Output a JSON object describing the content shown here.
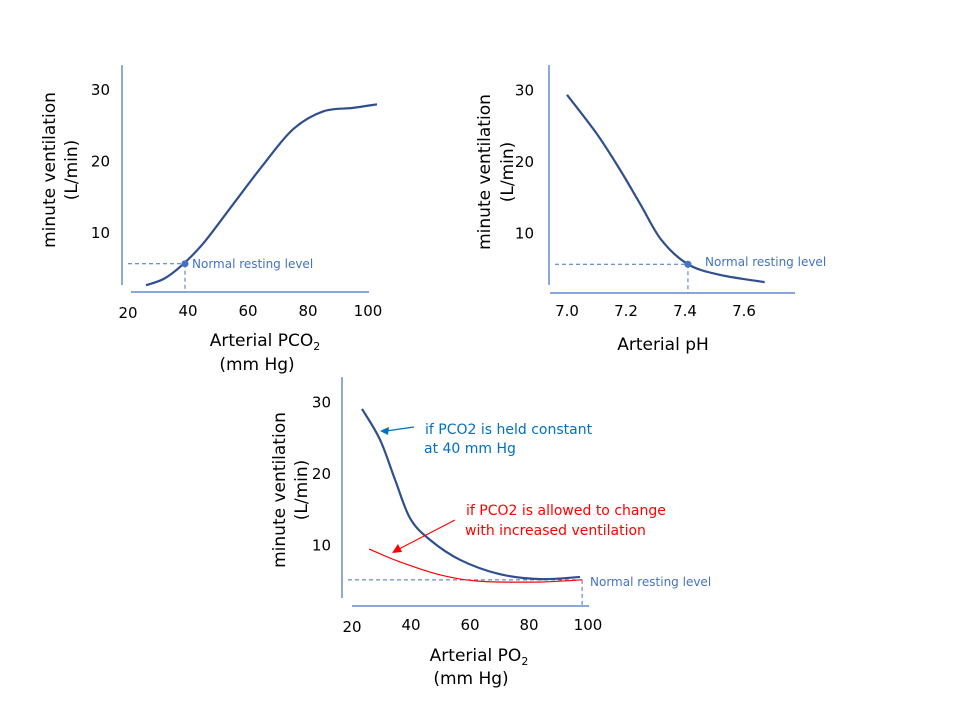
{
  "chart_data": [
    {
      "type": "line",
      "xlabel": "Arterial PCO2",
      "xlabel_main": "Arterial PCO",
      "xlabel_sub": "2",
      "xlabel_unit": "(mm Hg)",
      "ylabel": "minute ventilation",
      "ylabel_unit": "(L/min)",
      "xticks": [
        20,
        40,
        60,
        80,
        100
      ],
      "yticks": [
        10,
        20,
        30
      ],
      "xlim": [
        20,
        100
      ],
      "ylim": [
        0,
        30
      ],
      "series": [
        {
          "color": "#2f4f8f",
          "points": [
            [
              26,
              2.7
            ],
            [
              32,
              3.6
            ],
            [
              38,
              5.5
            ],
            [
              45,
              8.5
            ],
            [
              55,
              14
            ],
            [
              65,
              19.5
            ],
            [
              75,
              24.5
            ],
            [
              85,
              27
            ],
            [
              95,
              27.5
            ],
            [
              103,
              28
            ]
          ]
        }
      ],
      "normal_point": [
        39,
        5.7
      ],
      "annotation": "Normal resting level"
    },
    {
      "type": "line",
      "xlabel": "Arterial pH",
      "ylabel": "minute ventilation",
      "ylabel_unit": "(L/min)",
      "xticks": [
        7.0,
        7.2,
        7.4,
        7.6
      ],
      "xtick_labels": [
        "7.0",
        "7.2",
        "7.4",
        "7.6"
      ],
      "yticks": [
        10,
        20,
        30
      ],
      "xlim": [
        7.0,
        7.6
      ],
      "ylim": [
        0,
        30
      ],
      "series": [
        {
          "color": "#2f4f8f",
          "points": [
            [
              7.0,
              29.4
            ],
            [
              7.1,
              24
            ],
            [
              7.18,
              18.9
            ],
            [
              7.25,
              14
            ],
            [
              7.32,
              9.1
            ],
            [
              7.41,
              5.7
            ],
            [
              7.52,
              4.2
            ],
            [
              7.67,
              3.2
            ]
          ]
        }
      ],
      "normal_point": [
        7.41,
        5.7
      ],
      "annotation": "Normal resting level"
    },
    {
      "type": "line",
      "xlabel": "Arterial PO2",
      "xlabel_main": "Arterial PO",
      "xlabel_sub": "2",
      "xlabel_unit": "(mm Hg)",
      "ylabel": "minute ventilation",
      "ylabel_unit": "(L/min)",
      "xticks": [
        20,
        40,
        60,
        80,
        100
      ],
      "yticks": [
        10,
        20,
        30
      ],
      "xlim": [
        20,
        100
      ],
      "ylim": [
        0,
        30
      ],
      "series": [
        {
          "name": "if PCO2 is held constant at 40 mm Hg",
          "color": "#2f4f8f",
          "label_color": "#0070c0",
          "label_lines": [
            "if PCO2 is held constant",
            "at 40 mm  Hg"
          ],
          "points": [
            [
              23.4,
              29.1
            ],
            [
              29.5,
              24.8
            ],
            [
              34.6,
              19.2
            ],
            [
              39.7,
              13.8
            ],
            [
              46.4,
              10.8
            ],
            [
              56.6,
              8
            ],
            [
              70,
              6
            ],
            [
              83.7,
              5.3
            ],
            [
              97.3,
              5.6
            ]
          ]
        },
        {
          "name": "if PCO2 is allowed to change with increased ventilation",
          "color": "#ff0000",
          "label_color": "#ff0000",
          "label_lines": [
            "if PCO2 is allowed to change",
            "with increased ventilation"
          ],
          "points": [
            [
              25.8,
              9.5
            ],
            [
              36.3,
              7.7
            ],
            [
              49.8,
              5.9
            ],
            [
              63.4,
              5
            ],
            [
              83.7,
              4.9
            ],
            [
              98,
              5.2
            ]
          ]
        }
      ],
      "normal_point": [
        98,
        5.2
      ],
      "annotation": "Normal resting level"
    }
  ]
}
